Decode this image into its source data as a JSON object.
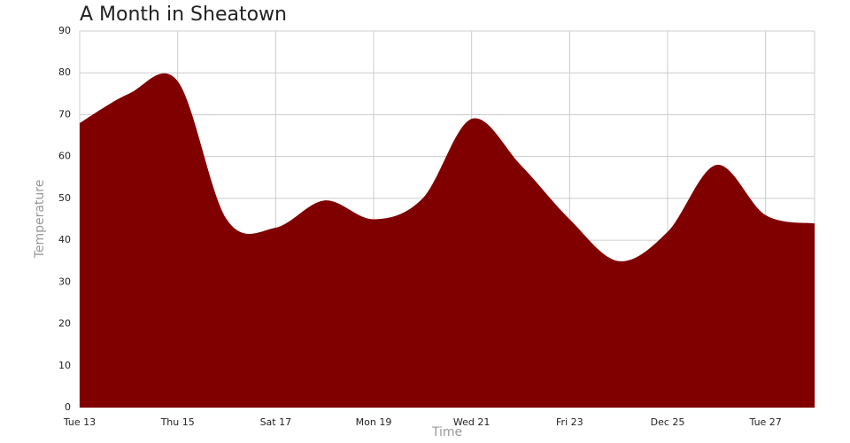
{
  "chart_data": {
    "type": "area",
    "title": "A Month in Sheatown",
    "x_label": "Time",
    "y_label": "Temperature",
    "x": [
      13,
      14,
      15,
      16,
      17,
      18,
      19,
      20,
      21,
      22,
      23,
      24,
      25,
      26,
      27,
      28
    ],
    "series": [
      {
        "name": "Temperature",
        "color": "#800000",
        "values": [
          68,
          75,
          78,
          45,
          43,
          49.5,
          45,
          50,
          69,
          58,
          45,
          35,
          42,
          58,
          46,
          44
        ]
      }
    ],
    "xlim": [
      13,
      28
    ],
    "xticks": [
      {
        "value": 13,
        "label": "Tue 13"
      },
      {
        "value": 15,
        "label": "Thu 15"
      },
      {
        "value": 17,
        "label": "Sat 17"
      },
      {
        "value": 19,
        "label": "Mon 19"
      },
      {
        "value": 21,
        "label": "Wed 21"
      },
      {
        "value": 23,
        "label": "Fri 23"
      },
      {
        "value": 25,
        "label": "Dec 25"
      },
      {
        "value": 27,
        "label": "Tue 27"
      }
    ],
    "ylim": [
      0,
      90
    ],
    "yticks": [
      0,
      10,
      20,
      30,
      40,
      50,
      60,
      70,
      80,
      90
    ],
    "grid": true
  }
}
